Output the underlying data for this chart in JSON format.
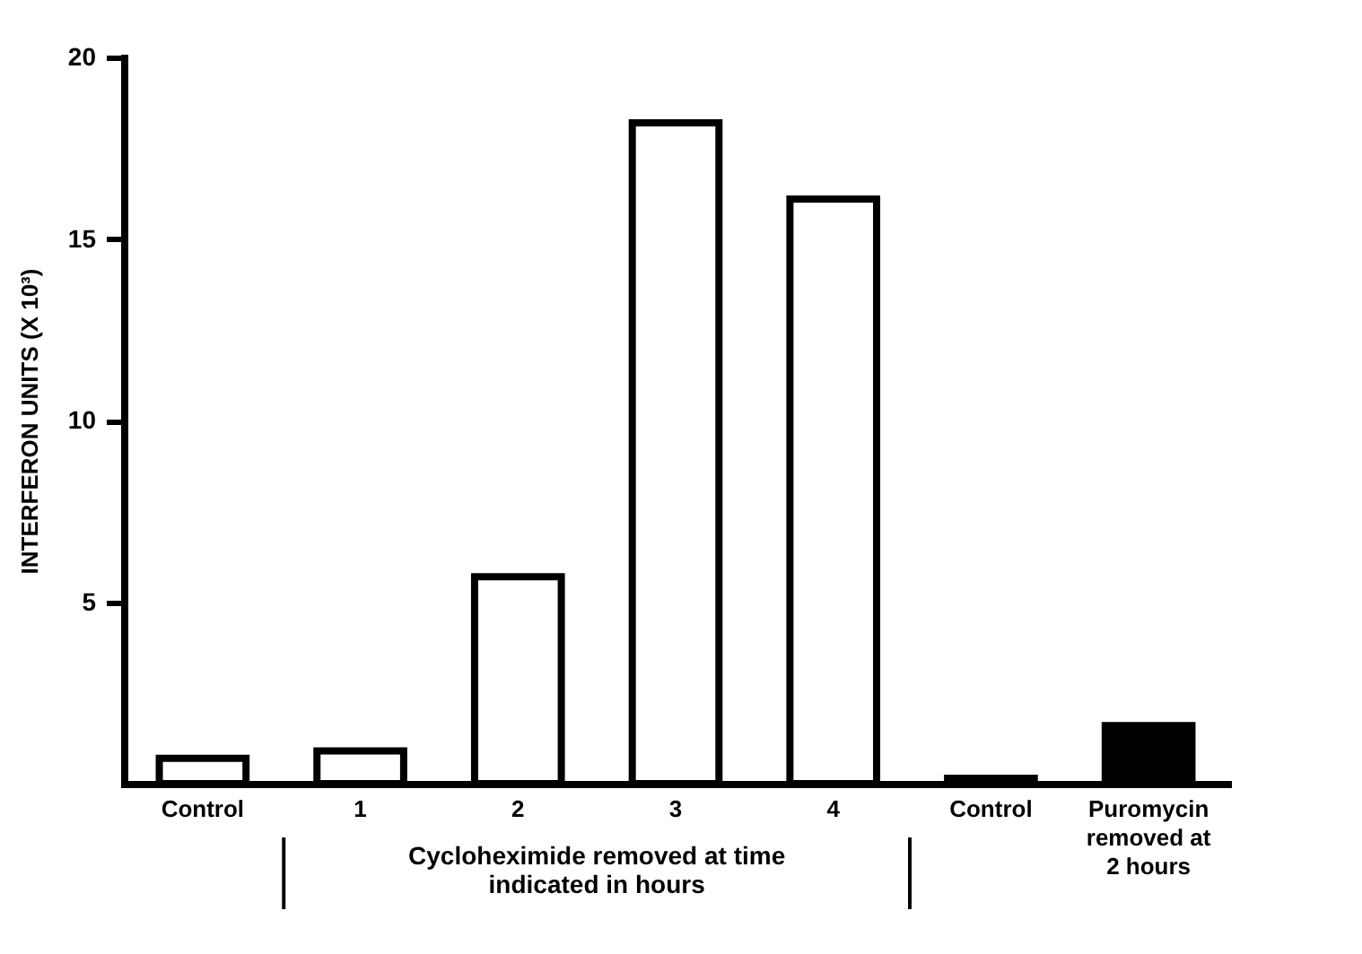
{
  "chart_data": {
    "type": "bar",
    "ylabel": "INTERFERON UNITS (X 10³)",
    "categories": [
      "Control",
      "1",
      "2",
      "3",
      "4",
      "Control",
      "Puromycin removed at 2 hours"
    ],
    "values": [
      0.7,
      0.9,
      5.7,
      18.2,
      16.1,
      0.15,
      1.6
    ],
    "colors": [
      "#ffffff",
      "#ffffff",
      "#ffffff",
      "#ffffff",
      "#ffffff",
      "#000000",
      "#000000"
    ],
    "ylim": [
      0,
      20
    ],
    "yticks": [
      5,
      10,
      15,
      20
    ],
    "grid": false,
    "legend": false,
    "annotations": [
      "Cycloheximide removed at time indicated in hours"
    ]
  }
}
